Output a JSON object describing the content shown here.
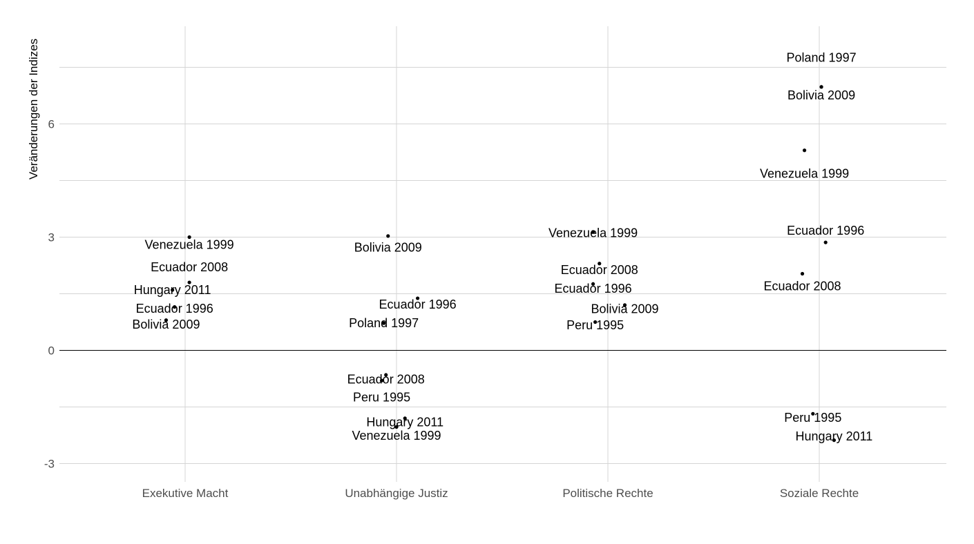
{
  "chart_data": {
    "type": "scatter",
    "title": "",
    "xlabel": "",
    "ylabel": "Veränderungen der Indizes",
    "categories": [
      "Exekutive Macht",
      "Unabhängige Justiz",
      "Politische Rechte",
      "Soziale Rechte"
    ],
    "yticks": [
      -3,
      0,
      3,
      6
    ],
    "ylim": [
      -3.6,
      8.6
    ],
    "grid": true,
    "legend": "none",
    "reference_line": 0,
    "points": [
      {
        "category": "Exekutive Macht",
        "jitter": 0.02,
        "y": 3.0,
        "label": "Venezuela 1999",
        "dy": -0.2
      },
      {
        "category": "Exekutive Macht",
        "jitter": 0.02,
        "y": 1.8,
        "label": "Ecuador 2008",
        "dy": 0.4
      },
      {
        "category": "Exekutive Macht",
        "jitter": -0.06,
        "y": 1.6,
        "label": "Hungary 2011",
        "dy": 0.0
      },
      {
        "category": "Exekutive Macht",
        "jitter": -0.05,
        "y": 1.15,
        "label": "Ecuador 1996",
        "dy": -0.04
      },
      {
        "category": "Exekutive Macht",
        "jitter": -0.09,
        "y": 0.8,
        "label": "Bolivia 2009",
        "dy": -0.11
      },
      {
        "category": "Unabhängige Justiz",
        "jitter": -0.04,
        "y": 3.03,
        "label": "Bolivia 2009",
        "dy": -0.3
      },
      {
        "category": "Unabhängige Justiz",
        "jitter": 0.1,
        "y": 1.38,
        "label": "Ecuador 1996",
        "dy": -0.16
      },
      {
        "category": "Unabhängige Justiz",
        "jitter": -0.06,
        "y": 0.72,
        "label": "Poland 1997",
        "dy": 0.0
      },
      {
        "category": "Unabhängige Justiz",
        "jitter": -0.05,
        "y": -0.65,
        "label": "Ecuador 2008",
        "dy": -0.12
      },
      {
        "category": "Unabhängige Justiz",
        "jitter": -0.07,
        "y": -0.8,
        "label": "Peru 1995",
        "dy": -0.44
      },
      {
        "category": "Unabhängige Justiz",
        "jitter": 0.04,
        "y": -1.8,
        "label": "Hungary 2011",
        "dy": -0.1
      },
      {
        "category": "Unabhängige Justiz",
        "jitter": 0.0,
        "y": -2.03,
        "label": "Venezuela 1999",
        "dy": -0.23
      },
      {
        "category": "Politische Rechte",
        "jitter": -0.07,
        "y": 3.14,
        "label": "Venezuela 1999",
        "dy": -0.03
      },
      {
        "category": "Politische Rechte",
        "jitter": -0.04,
        "y": 2.3,
        "label": "Ecuador 2008",
        "dy": -0.17
      },
      {
        "category": "Politische Rechte",
        "jitter": -0.07,
        "y": 1.76,
        "label": "Ecuador 1996",
        "dy": -0.12
      },
      {
        "category": "Politische Rechte",
        "jitter": 0.08,
        "y": 1.2,
        "label": "Bolivia 2009",
        "dy": -0.1
      },
      {
        "category": "Politische Rechte",
        "jitter": -0.06,
        "y": 0.75,
        "label": "Peru 1995",
        "dy": -0.08
      },
      {
        "category": "Soziale Rechte",
        "jitter": 0.01,
        "y": 6.98,
        "label": "Poland 1997",
        "dy": 0.78
      },
      {
        "category": "Soziale Rechte",
        "jitter": 0.01,
        "y": 6.98,
        "label": "Bolivia 2009",
        "dy": -0.22
      },
      {
        "category": "Soziale Rechte",
        "jitter": -0.07,
        "y": 5.3,
        "label": "Venezuela 1999",
        "dy": -0.62
      },
      {
        "category": "Soziale Rechte",
        "jitter": 0.03,
        "y": 2.86,
        "label": "Ecuador 1996",
        "dy": 0.31
      },
      {
        "category": "Soziale Rechte",
        "jitter": -0.08,
        "y": 2.03,
        "label": "Ecuador 2008",
        "dy": -0.33
      },
      {
        "category": "Soziale Rechte",
        "jitter": -0.03,
        "y": -1.68,
        "label": "Peru 1995",
        "dy": -0.1
      },
      {
        "category": "Soziale Rechte",
        "jitter": 0.07,
        "y": -2.38,
        "label": "Hungary 2011",
        "dy": 0.1
      }
    ]
  }
}
